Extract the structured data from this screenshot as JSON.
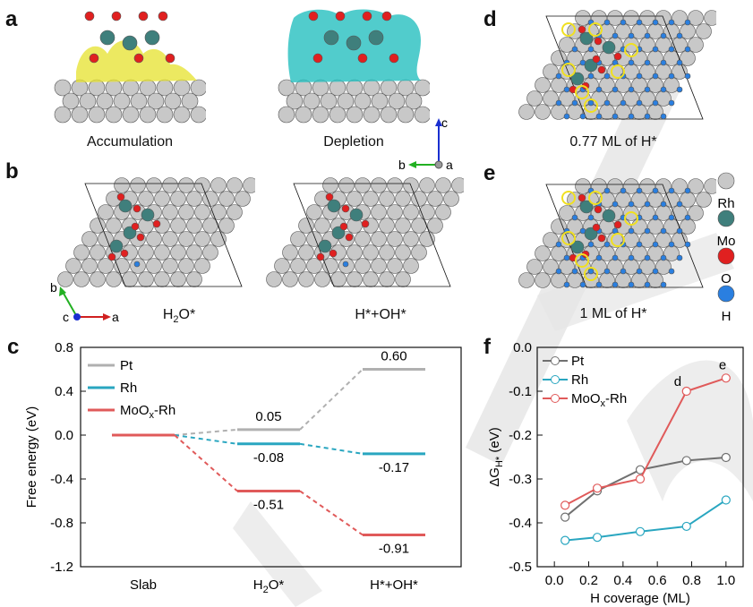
{
  "panels": {
    "a": {
      "label": "a",
      "captions": [
        "Accumulation",
        "Depletion"
      ]
    },
    "b": {
      "label": "b",
      "captions": [
        "H2O*",
        "H*+OH*"
      ]
    },
    "c": {
      "label": "c"
    },
    "d": {
      "label": "d",
      "caption": "0.77 ML of H*"
    },
    "e": {
      "label": "e",
      "caption": "1 ML of H*"
    },
    "f": {
      "label": "f"
    }
  },
  "axes_c_b": {
    "c": "c",
    "b": "b",
    "a": "a"
  },
  "axes_b": {
    "b": "b",
    "c": "c",
    "a": "a"
  },
  "atom_legend": [
    {
      "name": "Rh",
      "color": "#c8c8c8"
    },
    {
      "name": "Mo",
      "color": "#3f7f7c"
    },
    {
      "name": "O",
      "color": "#e02020"
    },
    {
      "name": "H",
      "color": "#2a7fe0"
    }
  ],
  "colors": {
    "pt": "#b0b0b0",
    "rh": "#29a6c0",
    "mo": "#e05a5a",
    "accumulation": "#e6e22c",
    "depletion": "#26bfbf"
  },
  "chart_data": [
    {
      "type": "line",
      "id": "c",
      "ylabel": "Free energy (eV)",
      "categories": [
        "Slab",
        "H2O*",
        "H*+OH*"
      ],
      "ylim": [
        -1.2,
        0.8
      ],
      "yticks": [
        "0.8",
        "0.4",
        "0.0",
        "-0.4",
        "-0.8",
        "-1.2"
      ],
      "series": [
        {
          "name": "Pt",
          "values": [
            0.0,
            0.05,
            0.6
          ],
          "labels": [
            "",
            "0.05",
            "0.60"
          ],
          "color": "#b0b0b0"
        },
        {
          "name": "Rh",
          "values": [
            0.0,
            -0.08,
            -0.17
          ],
          "labels": [
            "",
            "-0.08",
            "-0.17"
          ],
          "color": "#29a6c0"
        },
        {
          "name": "MoOx-Rh",
          "values": [
            0.0,
            -0.51,
            -0.91
          ],
          "labels": [
            "",
            "-0.51",
            "-0.91"
          ],
          "color": "#e05a5a"
        }
      ],
      "legend": "top-left"
    },
    {
      "type": "line",
      "id": "f",
      "xlabel": "H coverage (ML)",
      "ylabel": "ΔGH* (eV)",
      "xlim": [
        -0.1,
        1.1
      ],
      "ylim": [
        -0.5,
        0.0
      ],
      "xticks": [
        "0.0",
        "0.2",
        "0.4",
        "0.6",
        "0.8",
        "1.0"
      ],
      "yticks": [
        "0.0",
        "-0.1",
        "-0.2",
        "-0.3",
        "-0.4",
        "-0.5"
      ],
      "series": [
        {
          "name": "Pt",
          "x": [
            0.0625,
            0.25,
            0.5,
            0.77,
            1.0
          ],
          "y": [
            -0.387,
            -0.327,
            -0.279,
            -0.258,
            -0.251
          ],
          "color": "#707070"
        },
        {
          "name": "Rh",
          "x": [
            0.0625,
            0.25,
            0.5,
            0.77,
            1.0
          ],
          "y": [
            -0.44,
            -0.433,
            -0.42,
            -0.408,
            -0.348
          ],
          "color": "#29a6c0"
        },
        {
          "name": "MoOx-Rh",
          "x": [
            0.0625,
            0.25,
            0.5,
            0.77,
            1.0
          ],
          "y": [
            -0.36,
            -0.321,
            -0.3,
            -0.1,
            -0.07
          ],
          "color": "#e05a5a"
        }
      ],
      "annotations": [
        "d",
        "e"
      ],
      "legend": "top-left"
    }
  ]
}
